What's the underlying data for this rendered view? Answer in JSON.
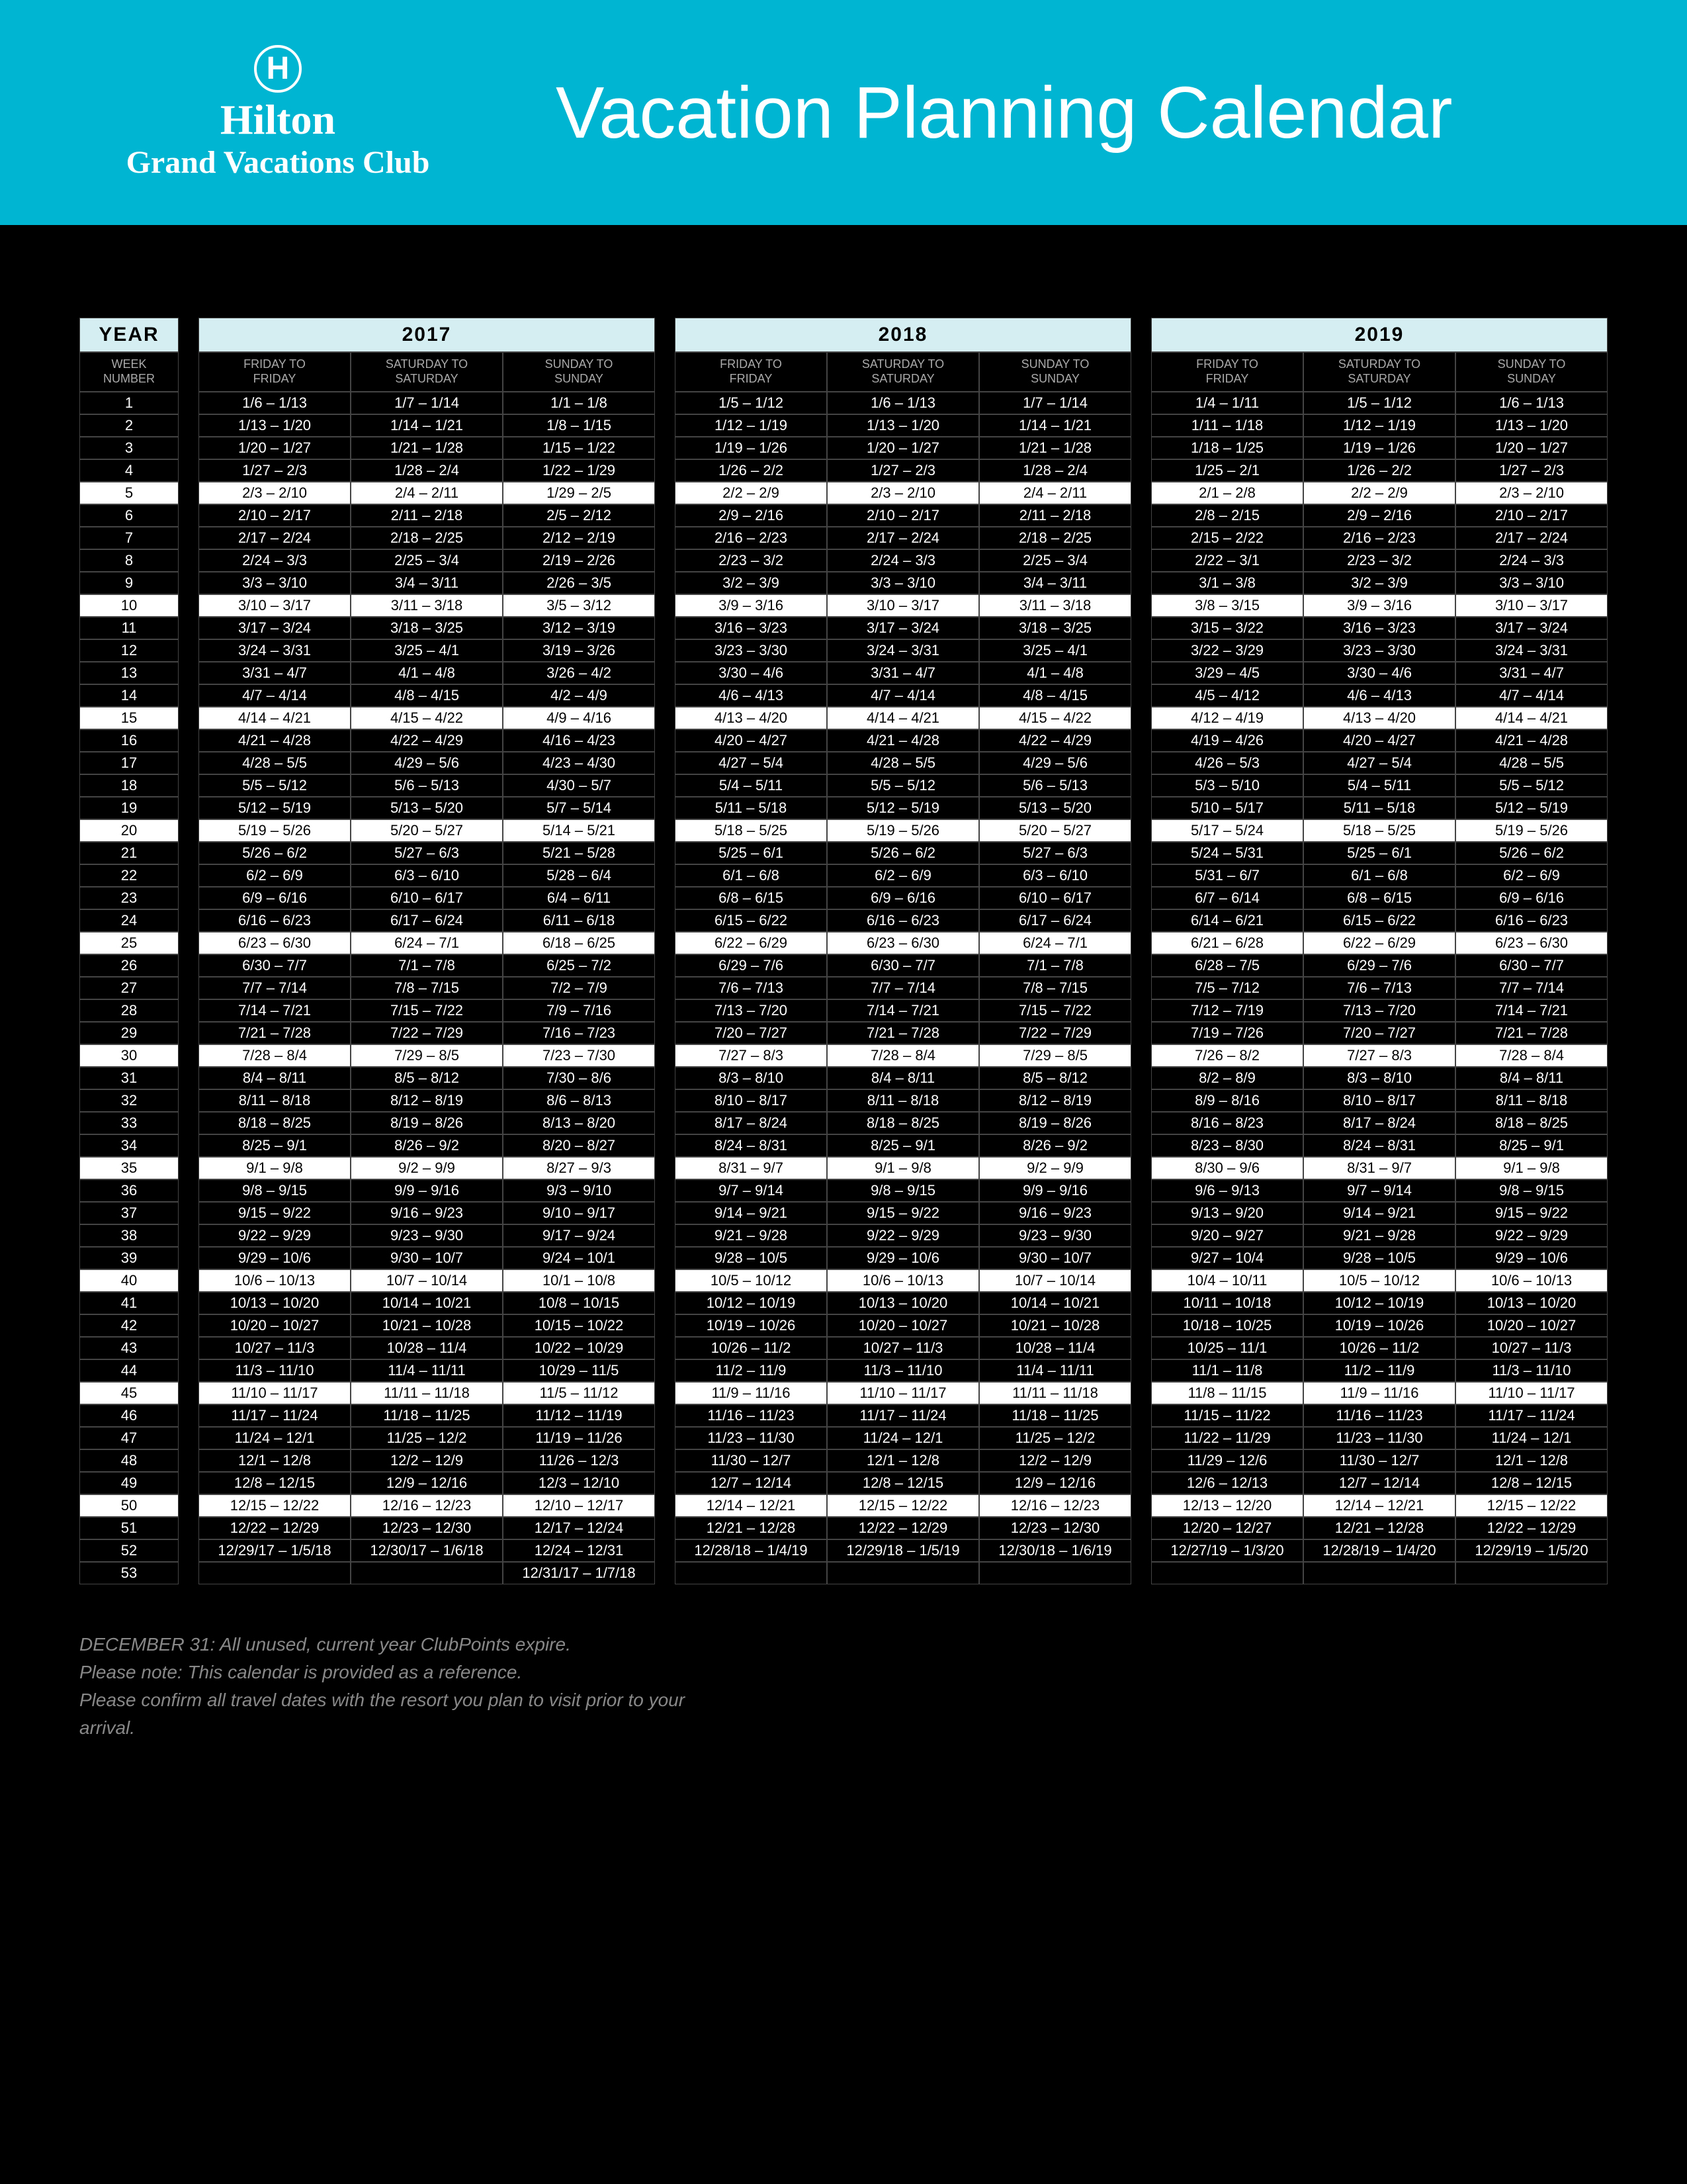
{
  "header": {
    "brand_logo_letter": "H",
    "brand_line1": "Hilton",
    "brand_line2": "Grand Vacations Club",
    "title": "Vacation Planning Calendar"
  },
  "week_header1": "YEAR",
  "week_header2": "WEEK\nNUMBER",
  "weeks": [
    "1",
    "2",
    "3",
    "4",
    "5",
    "6",
    "7",
    "8",
    "9",
    "10",
    "11",
    "12",
    "13",
    "14",
    "15",
    "16",
    "17",
    "18",
    "19",
    "20",
    "21",
    "22",
    "23",
    "24",
    "25",
    "26",
    "27",
    "28",
    "29",
    "30",
    "31",
    "32",
    "33",
    "34",
    "35",
    "36",
    "37",
    "38",
    "39",
    "40",
    "41",
    "42",
    "43",
    "44",
    "45",
    "46",
    "47",
    "48",
    "49",
    "50",
    "51",
    "52",
    "53"
  ],
  "col_labels": [
    "FRIDAY TO\nFRIDAY",
    "SATURDAY TO\nSATURDAY",
    "SUNDAY TO\nSUNDAY"
  ],
  "highlight_weeks": [
    5,
    10,
    15,
    20,
    25,
    30,
    35,
    40,
    45,
    50
  ],
  "years": [
    {
      "year": "2017",
      "cols": [
        [
          "1/6 – 1/13",
          "1/13 – 1/20",
          "1/20 – 1/27",
          "1/27 – 2/3",
          "2/3 – 2/10",
          "2/10 – 2/17",
          "2/17 – 2/24",
          "2/24 – 3/3",
          "3/3 – 3/10",
          "3/10 – 3/17",
          "3/17 – 3/24",
          "3/24 – 3/31",
          "3/31 – 4/7",
          "4/7 – 4/14",
          "4/14 – 4/21",
          "4/21 – 4/28",
          "4/28 – 5/5",
          "5/5 – 5/12",
          "5/12 – 5/19",
          "5/19 – 5/26",
          "5/26 – 6/2",
          "6/2 – 6/9",
          "6/9 – 6/16",
          "6/16 – 6/23",
          "6/23 – 6/30",
          "6/30 – 7/7",
          "7/7 – 7/14",
          "7/14 – 7/21",
          "7/21 – 7/28",
          "7/28 – 8/4",
          "8/4 – 8/11",
          "8/11 – 8/18",
          "8/18 – 8/25",
          "8/25 – 9/1",
          "9/1 – 9/8",
          "9/8 – 9/15",
          "9/15 – 9/22",
          "9/22 – 9/29",
          "9/29 – 10/6",
          "10/6 – 10/13",
          "10/13 – 10/20",
          "10/20 – 10/27",
          "10/27 – 11/3",
          "11/3 – 11/10",
          "11/10 – 11/17",
          "11/17 – 11/24",
          "11/24 – 12/1",
          "12/1 – 12/8",
          "12/8 – 12/15",
          "12/15 – 12/22",
          "12/22 – 12/29",
          "12/29/17 – 1/5/18",
          ""
        ],
        [
          "1/7 – 1/14",
          "1/14 – 1/21",
          "1/21 – 1/28",
          "1/28 – 2/4",
          "2/4 – 2/11",
          "2/11 – 2/18",
          "2/18 – 2/25",
          "2/25 – 3/4",
          "3/4 – 3/11",
          "3/11 – 3/18",
          "3/18 – 3/25",
          "3/25 – 4/1",
          "4/1 – 4/8",
          "4/8 – 4/15",
          "4/15 – 4/22",
          "4/22 – 4/29",
          "4/29 – 5/6",
          "5/6 – 5/13",
          "5/13 – 5/20",
          "5/20 – 5/27",
          "5/27 – 6/3",
          "6/3 – 6/10",
          "6/10 – 6/17",
          "6/17 – 6/24",
          "6/24 – 7/1",
          "7/1 – 7/8",
          "7/8 – 7/15",
          "7/15 – 7/22",
          "7/22 – 7/29",
          "7/29 – 8/5",
          "8/5 – 8/12",
          "8/12 – 8/19",
          "8/19 – 8/26",
          "8/26 – 9/2",
          "9/2 – 9/9",
          "9/9 – 9/16",
          "9/16 – 9/23",
          "9/23 – 9/30",
          "9/30 – 10/7",
          "10/7 – 10/14",
          "10/14 – 10/21",
          "10/21 – 10/28",
          "10/28 – 11/4",
          "11/4 – 11/11",
          "11/11 – 11/18",
          "11/18 – 11/25",
          "11/25 – 12/2",
          "12/2 – 12/9",
          "12/9 – 12/16",
          "12/16 – 12/23",
          "12/23 – 12/30",
          "12/30/17 – 1/6/18",
          ""
        ],
        [
          "1/1 – 1/8",
          "1/8 – 1/15",
          "1/15 – 1/22",
          "1/22 – 1/29",
          "1/29 – 2/5",
          "2/5 – 2/12",
          "2/12 – 2/19",
          "2/19 – 2/26",
          "2/26 – 3/5",
          "3/5 – 3/12",
          "3/12 – 3/19",
          "3/19 – 3/26",
          "3/26 – 4/2",
          "4/2 – 4/9",
          "4/9 – 4/16",
          "4/16 – 4/23",
          "4/23 – 4/30",
          "4/30 – 5/7",
          "5/7 – 5/14",
          "5/14 – 5/21",
          "5/21 – 5/28",
          "5/28 – 6/4",
          "6/4 – 6/11",
          "6/11 – 6/18",
          "6/18 – 6/25",
          "6/25 – 7/2",
          "7/2 – 7/9",
          "7/9 – 7/16",
          "7/16 – 7/23",
          "7/23 – 7/30",
          "7/30 – 8/6",
          "8/6 – 8/13",
          "8/13 – 8/20",
          "8/20 – 8/27",
          "8/27 – 9/3",
          "9/3 – 9/10",
          "9/10 – 9/17",
          "9/17 – 9/24",
          "9/24 – 10/1",
          "10/1 – 10/8",
          "10/8 – 10/15",
          "10/15 – 10/22",
          "10/22 – 10/29",
          "10/29 – 11/5",
          "11/5 – 11/12",
          "11/12 – 11/19",
          "11/19 – 11/26",
          "11/26 – 12/3",
          "12/3 – 12/10",
          "12/10 – 12/17",
          "12/17 – 12/24",
          "12/24 – 12/31",
          "12/31/17 – 1/7/18"
        ]
      ]
    },
    {
      "year": "2018",
      "cols": [
        [
          "1/5 – 1/12",
          "1/12 – 1/19",
          "1/19 – 1/26",
          "1/26 – 2/2",
          "2/2 – 2/9",
          "2/9 – 2/16",
          "2/16 – 2/23",
          "2/23 – 3/2",
          "3/2 – 3/9",
          "3/9 – 3/16",
          "3/16 – 3/23",
          "3/23 – 3/30",
          "3/30 – 4/6",
          "4/6 – 4/13",
          "4/13 – 4/20",
          "4/20 – 4/27",
          "4/27 – 5/4",
          "5/4 – 5/11",
          "5/11 – 5/18",
          "5/18 – 5/25",
          "5/25 – 6/1",
          "6/1 – 6/8",
          "6/8 – 6/15",
          "6/15 – 6/22",
          "6/22 – 6/29",
          "6/29 – 7/6",
          "7/6 – 7/13",
          "7/13 – 7/20",
          "7/20 – 7/27",
          "7/27 – 8/3",
          "8/3 – 8/10",
          "8/10 – 8/17",
          "8/17 – 8/24",
          "8/24 – 8/31",
          "8/31 – 9/7",
          "9/7 – 9/14",
          "9/14 – 9/21",
          "9/21 – 9/28",
          "9/28 – 10/5",
          "10/5 – 10/12",
          "10/12 – 10/19",
          "10/19 – 10/26",
          "10/26 – 11/2",
          "11/2 – 11/9",
          "11/9 – 11/16",
          "11/16 – 11/23",
          "11/23 – 11/30",
          "11/30 – 12/7",
          "12/7 – 12/14",
          "12/14 – 12/21",
          "12/21 – 12/28",
          "12/28/18 – 1/4/19",
          ""
        ],
        [
          "1/6 – 1/13",
          "1/13 – 1/20",
          "1/20 – 1/27",
          "1/27 – 2/3",
          "2/3 – 2/10",
          "2/10 – 2/17",
          "2/17 – 2/24",
          "2/24 – 3/3",
          "3/3 – 3/10",
          "3/10 – 3/17",
          "3/17 – 3/24",
          "3/24 – 3/31",
          "3/31 – 4/7",
          "4/7 – 4/14",
          "4/14 – 4/21",
          "4/21 – 4/28",
          "4/28 – 5/5",
          "5/5 – 5/12",
          "5/12 – 5/19",
          "5/19 – 5/26",
          "5/26 – 6/2",
          "6/2 – 6/9",
          "6/9 – 6/16",
          "6/16 – 6/23",
          "6/23 – 6/30",
          "6/30 – 7/7",
          "7/7 – 7/14",
          "7/14 – 7/21",
          "7/21 – 7/28",
          "7/28 – 8/4",
          "8/4 – 8/11",
          "8/11 – 8/18",
          "8/18 – 8/25",
          "8/25 – 9/1",
          "9/1 – 9/8",
          "9/8 – 9/15",
          "9/15 – 9/22",
          "9/22 – 9/29",
          "9/29 – 10/6",
          "10/6 – 10/13",
          "10/13 – 10/20",
          "10/20 – 10/27",
          "10/27 – 11/3",
          "11/3 – 11/10",
          "11/10 – 11/17",
          "11/17 – 11/24",
          "11/24 – 12/1",
          "12/1 – 12/8",
          "12/8 – 12/15",
          "12/15 – 12/22",
          "12/22 – 12/29",
          "12/29/18 – 1/5/19",
          ""
        ],
        [
          "1/7 – 1/14",
          "1/14 – 1/21",
          "1/21 – 1/28",
          "1/28 – 2/4",
          "2/4 – 2/11",
          "2/11 – 2/18",
          "2/18 – 2/25",
          "2/25 – 3/4",
          "3/4 – 3/11",
          "3/11 – 3/18",
          "3/18 – 3/25",
          "3/25 – 4/1",
          "4/1 – 4/8",
          "4/8 – 4/15",
          "4/15 – 4/22",
          "4/22 – 4/29",
          "4/29 – 5/6",
          "5/6 – 5/13",
          "5/13 – 5/20",
          "5/20 – 5/27",
          "5/27 – 6/3",
          "6/3 – 6/10",
          "6/10 – 6/17",
          "6/17 – 6/24",
          "6/24 – 7/1",
          "7/1 – 7/8",
          "7/8 – 7/15",
          "7/15 – 7/22",
          "7/22 – 7/29",
          "7/29 – 8/5",
          "8/5 – 8/12",
          "8/12 – 8/19",
          "8/19 – 8/26",
          "8/26 – 9/2",
          "9/2 – 9/9",
          "9/9 – 9/16",
          "9/16 – 9/23",
          "9/23 – 9/30",
          "9/30 – 10/7",
          "10/7 – 10/14",
          "10/14 – 10/21",
          "10/21 – 10/28",
          "10/28 – 11/4",
          "11/4 – 11/11",
          "11/11 – 11/18",
          "11/18 – 11/25",
          "11/25 – 12/2",
          "12/2 – 12/9",
          "12/9 – 12/16",
          "12/16 – 12/23",
          "12/23 – 12/30",
          "12/30/18 – 1/6/19",
          ""
        ]
      ]
    },
    {
      "year": "2019",
      "cols": [
        [
          "1/4 – 1/11",
          "1/11 – 1/18",
          "1/18 – 1/25",
          "1/25 – 2/1",
          "2/1 – 2/8",
          "2/8 – 2/15",
          "2/15 – 2/22",
          "2/22 – 3/1",
          "3/1 – 3/8",
          "3/8 – 3/15",
          "3/15 – 3/22",
          "3/22 – 3/29",
          "3/29 – 4/5",
          "4/5 – 4/12",
          "4/12 – 4/19",
          "4/19 – 4/26",
          "4/26 – 5/3",
          "5/3 – 5/10",
          "5/10 – 5/17",
          "5/17 – 5/24",
          "5/24 – 5/31",
          "5/31 – 6/7",
          "6/7 – 6/14",
          "6/14 – 6/21",
          "6/21 – 6/28",
          "6/28 – 7/5",
          "7/5 – 7/12",
          "7/12 – 7/19",
          "7/19 – 7/26",
          "7/26 – 8/2",
          "8/2 – 8/9",
          "8/9 – 8/16",
          "8/16 – 8/23",
          "8/23 – 8/30",
          "8/30 – 9/6",
          "9/6 – 9/13",
          "9/13 – 9/20",
          "9/20 – 9/27",
          "9/27 – 10/4",
          "10/4 – 10/11",
          "10/11 – 10/18",
          "10/18 – 10/25",
          "10/25 – 11/1",
          "11/1 – 11/8",
          "11/8 – 11/15",
          "11/15 – 11/22",
          "11/22 – 11/29",
          "11/29 – 12/6",
          "12/6 – 12/13",
          "12/13 – 12/20",
          "12/20 – 12/27",
          "12/27/19 – 1/3/20",
          ""
        ],
        [
          "1/5 – 1/12",
          "1/12 – 1/19",
          "1/19 – 1/26",
          "1/26 – 2/2",
          "2/2 – 2/9",
          "2/9 – 2/16",
          "2/16 – 2/23",
          "2/23 – 3/2",
          "3/2 – 3/9",
          "3/9 – 3/16",
          "3/16 – 3/23",
          "3/23 – 3/30",
          "3/30 – 4/6",
          "4/6 – 4/13",
          "4/13 – 4/20",
          "4/20 – 4/27",
          "4/27 – 5/4",
          "5/4 – 5/11",
          "5/11 – 5/18",
          "5/18 – 5/25",
          "5/25 – 6/1",
          "6/1 – 6/8",
          "6/8 – 6/15",
          "6/15 – 6/22",
          "6/22 – 6/29",
          "6/29 – 7/6",
          "7/6 – 7/13",
          "7/13 – 7/20",
          "7/20 – 7/27",
          "7/27 – 8/3",
          "8/3 – 8/10",
          "8/10 – 8/17",
          "8/17 – 8/24",
          "8/24 – 8/31",
          "8/31 – 9/7",
          "9/7 – 9/14",
          "9/14 – 9/21",
          "9/21 – 9/28",
          "9/28 – 10/5",
          "10/5 – 10/12",
          "10/12 – 10/19",
          "10/19 – 10/26",
          "10/26 – 11/2",
          "11/2 – 11/9",
          "11/9 – 11/16",
          "11/16 – 11/23",
          "11/23 – 11/30",
          "11/30 – 12/7",
          "12/7 – 12/14",
          "12/14 – 12/21",
          "12/21 – 12/28",
          "12/28/19 – 1/4/20",
          ""
        ],
        [
          "1/6 – 1/13",
          "1/13 – 1/20",
          "1/20 – 1/27",
          "1/27 – 2/3",
          "2/3 – 2/10",
          "2/10 – 2/17",
          "2/17 – 2/24",
          "2/24 – 3/3",
          "3/3 – 3/10",
          "3/10 – 3/17",
          "3/17 – 3/24",
          "3/24 – 3/31",
          "3/31 – 4/7",
          "4/7 – 4/14",
          "4/14 – 4/21",
          "4/21 – 4/28",
          "4/28 – 5/5",
          "5/5 – 5/12",
          "5/12 – 5/19",
          "5/19 – 5/26",
          "5/26 – 6/2",
          "6/2 – 6/9",
          "6/9 – 6/16",
          "6/16 – 6/23",
          "6/23 – 6/30",
          "6/30 – 7/7",
          "7/7 – 7/14",
          "7/14 – 7/21",
          "7/21 – 7/28",
          "7/28 – 8/4",
          "8/4 – 8/11",
          "8/11 – 8/18",
          "8/18 – 8/25",
          "8/25 – 9/1",
          "9/1 – 9/8",
          "9/8 – 9/15",
          "9/15 – 9/22",
          "9/22 – 9/29",
          "9/29 – 10/6",
          "10/6 – 10/13",
          "10/13 – 10/20",
          "10/20 – 10/27",
          "10/27 – 11/3",
          "11/3 – 11/10",
          "11/10 – 11/17",
          "11/17 – 11/24",
          "11/24 – 12/1",
          "12/1 – 12/8",
          "12/8 – 12/15",
          "12/15 – 12/22",
          "12/22 – 12/29",
          "12/29/19 – 1/5/20",
          ""
        ]
      ]
    }
  ],
  "footer": "DECEMBER 31: All unused, current year ClubPoints expire.\nPlease note: This calendar is provided as a reference.\nPlease confirm all travel dates with the resort you plan to visit prior to your arrival."
}
